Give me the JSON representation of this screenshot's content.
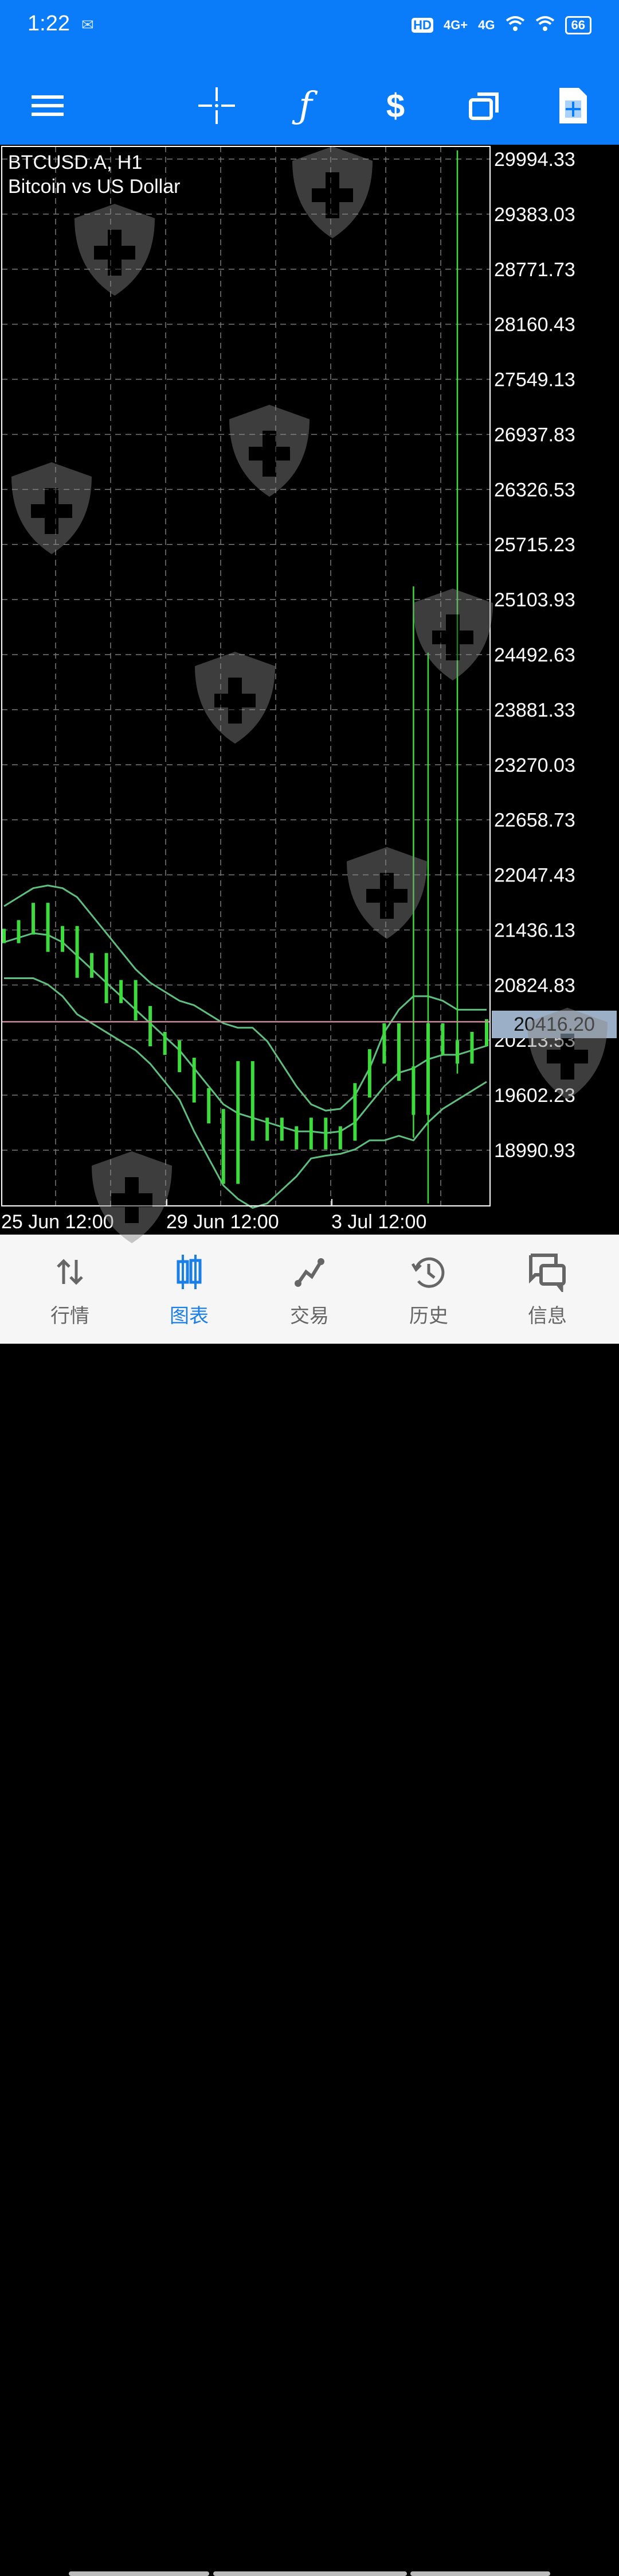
{
  "status_bar": {
    "time": "1:22",
    "signal_labels": [
      "HD",
      "4G+",
      "4G"
    ],
    "battery": "66"
  },
  "toolbar": {
    "icons": [
      "menu-icon",
      "crosshair-icon",
      "indicator-f-icon",
      "trade-dollar-icon",
      "windows-icon",
      "new-order-icon"
    ]
  },
  "chart": {
    "symbol": "BTCUSD.A, H1",
    "description": "Bitcoin vs US Dollar",
    "current_price": "20416.20",
    "colors": {
      "bars": "#3ddc3d",
      "bands": "#5fbf7f",
      "price_line": "#c98a9a",
      "price_tag_bg": "#9bb0c6",
      "grid": "#7a7a7a",
      "background": "#000000"
    }
  },
  "chart_data": {
    "type": "bar",
    "title": "BTCUSD.A, H1",
    "subtitle": "Bitcoin vs US Dollar",
    "ylim": [
      18990.93,
      29994.33
    ],
    "y_ticks": [
      "29994.33",
      "29383.03",
      "28771.73",
      "28160.43",
      "27549.13",
      "26937.83",
      "26326.53",
      "25715.23",
      "25103.93",
      "24492.63",
      "23881.33",
      "23270.03",
      "22658.73",
      "22047.43",
      "21436.13",
      "20824.83",
      "20213.53",
      "19602.23",
      "18990.93"
    ],
    "x_ticks": [
      "25 Jun 12:00",
      "29 Jun 12:00",
      "3 Jul 12:00"
    ],
    "grid": true,
    "close": [
      21369,
      21465,
      21657,
      21273,
      21400,
      20985,
      21100,
      20704,
      20800,
      20512,
      20224,
      20128,
      19937,
      19600,
      19368,
      18697,
      19900,
      19176,
      19272,
      19176,
      19080,
      19272,
      19080,
      19176,
      19655,
      20032,
      20320,
      19841,
      19463,
      20320,
      20128,
      20032,
      20224,
      20365
    ],
    "bollinger_upper": [
      21700,
      21800,
      21900,
      21930,
      21900,
      21800,
      21600,
      21400,
      21200,
      21000,
      20850,
      20750,
      20650,
      20600,
      20500,
      20400,
      20350,
      20350,
      20200,
      19950,
      19700,
      19500,
      19430,
      19450,
      19600,
      19900,
      20300,
      20550,
      20700,
      20700,
      20650,
      20550,
      20550,
      20550
    ],
    "bollinger_middle": [
      21300,
      21350,
      21400,
      21380,
      21300,
      21150,
      21000,
      20850,
      20700,
      20550,
      20400,
      20250,
      20100,
      19900,
      19700,
      19500,
      19400,
      19350,
      19300,
      19250,
      19200,
      19200,
      19180,
      19200,
      19300,
      19500,
      19700,
      19850,
      19900,
      20000,
      20050,
      20050,
      20100,
      20150
    ],
    "bollinger_lower": [
      20900,
      20900,
      20900,
      20830,
      20700,
      20500,
      20400,
      20300,
      20200,
      20100,
      19950,
      19750,
      19550,
      19200,
      18900,
      18600,
      18450,
      18350,
      18400,
      18550,
      18700,
      18900,
      18930,
      18950,
      19000,
      19100,
      19100,
      19150,
      19100,
      19300,
      19450,
      19550,
      19650,
      19750
    ],
    "spikes": [
      {
        "index": 28,
        "high": 25250,
        "low": 19128
      },
      {
        "index": 29,
        "high": 24515,
        "low": 18400
      },
      {
        "index": 31,
        "high": 30090,
        "low": 19841
      }
    ]
  },
  "nav": {
    "items": [
      {
        "label": "行情",
        "icon": "quotes-arrows-icon"
      },
      {
        "label": "图表",
        "icon": "candlestick-chart-icon",
        "active": true
      },
      {
        "label": "交易",
        "icon": "trade-line-icon"
      },
      {
        "label": "历史",
        "icon": "history-clock-icon"
      },
      {
        "label": "信息",
        "icon": "messages-icon"
      }
    ]
  }
}
